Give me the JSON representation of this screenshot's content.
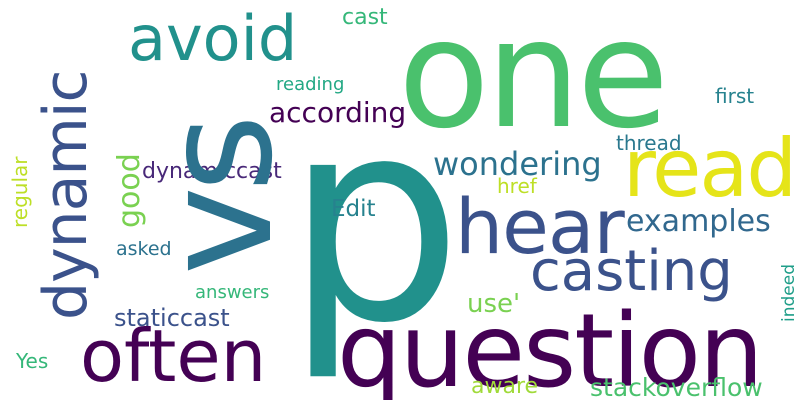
{
  "words": [
    {
      "text": "p",
      "color": "#21918c"
    },
    {
      "text": "one",
      "color": "#4ac16d"
    },
    {
      "text": "vs",
      "color": "#2c728e"
    },
    {
      "text": "question",
      "color": "#440154"
    },
    {
      "text": "read",
      "color": "#e5e419"
    },
    {
      "text": "hear",
      "color": "#3b528b"
    },
    {
      "text": "dynamic",
      "color": "#3b528b"
    },
    {
      "text": "often",
      "color": "#440154"
    },
    {
      "text": "avoid",
      "color": "#21918c"
    },
    {
      "text": "casting",
      "color": "#3b528b"
    },
    {
      "text": "wondering",
      "color": "#2c728e"
    },
    {
      "text": "examples",
      "color": "#31688e"
    },
    {
      "text": "according",
      "color": "#440154"
    },
    {
      "text": "good",
      "color": "#7ad151"
    },
    {
      "text": "dynamiccast",
      "color": "#482878"
    },
    {
      "text": "staticcast",
      "color": "#3b528b"
    },
    {
      "text": "stackoverflow",
      "color": "#4ac16d"
    },
    {
      "text": "use'",
      "color": "#7ad151"
    },
    {
      "text": "Edit",
      "color": "#26828e"
    },
    {
      "text": "aware",
      "color": "#a0da39"
    },
    {
      "text": "cast",
      "color": "#35b779"
    },
    {
      "text": "first",
      "color": "#26828e"
    },
    {
      "text": "thread",
      "color": "#2a788e"
    },
    {
      "text": "reading",
      "color": "#22a884"
    },
    {
      "text": "href",
      "color": "#bddf26"
    },
    {
      "text": "regular",
      "color": "#bddf26"
    },
    {
      "text": "asked",
      "color": "#2c728e"
    },
    {
      "text": "answers",
      "color": "#35b779"
    },
    {
      "text": "Yes",
      "color": "#35b779"
    },
    {
      "text": "indeed",
      "color": "#1f9e89"
    }
  ]
}
